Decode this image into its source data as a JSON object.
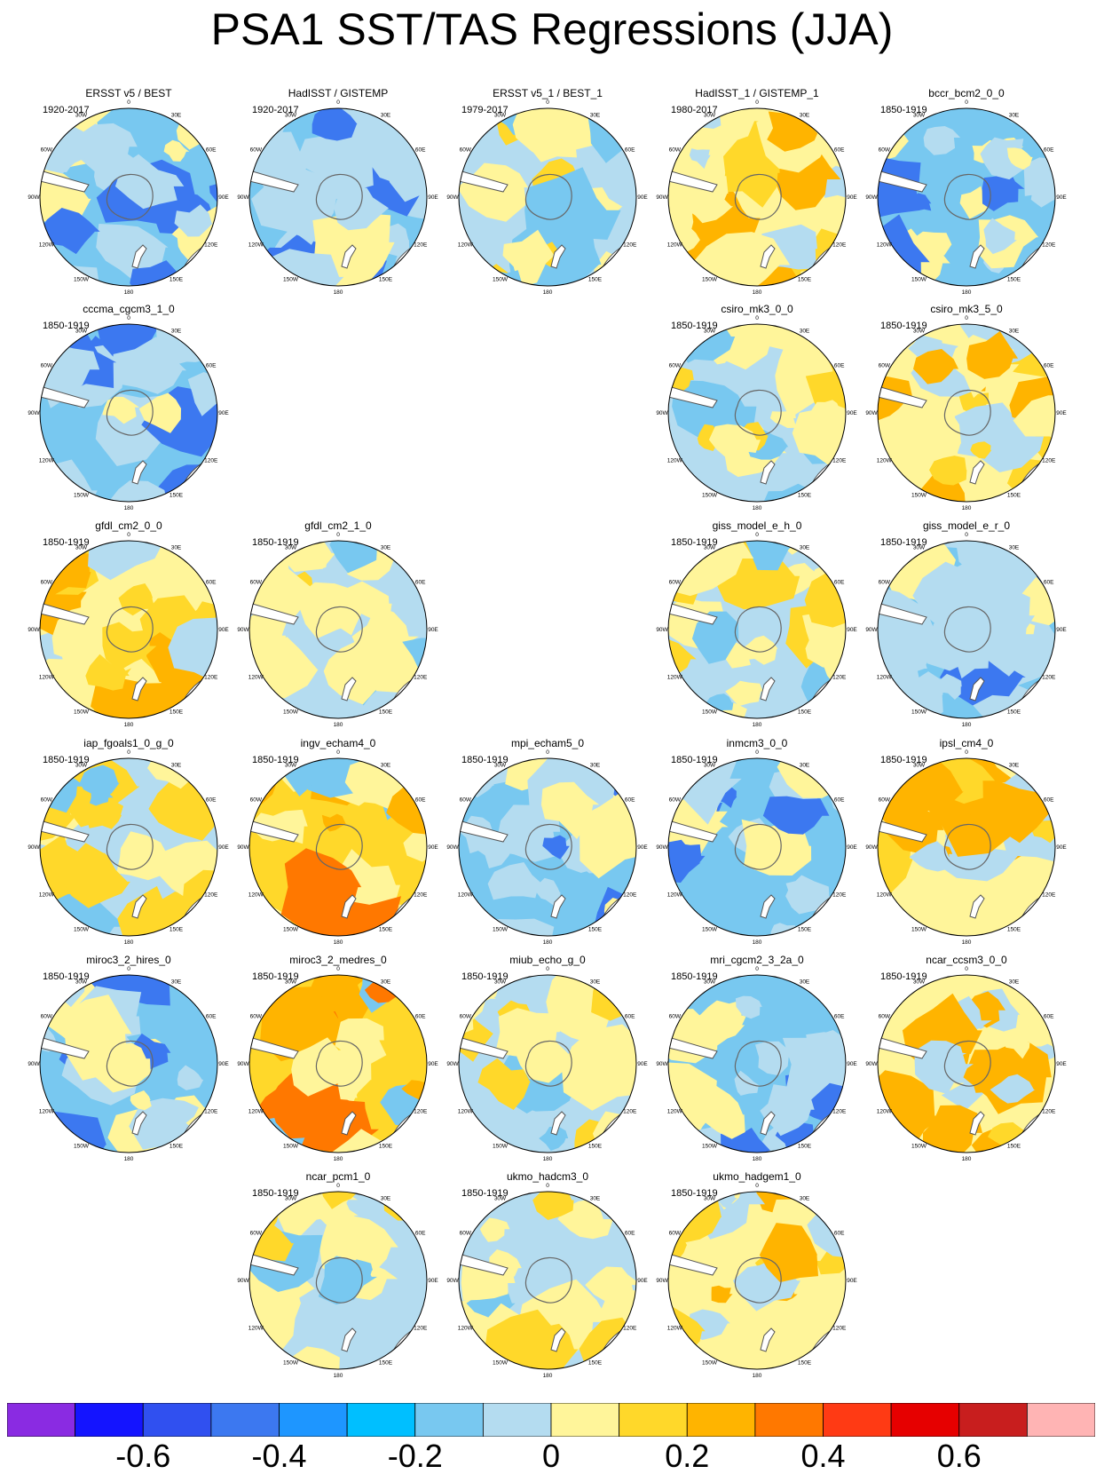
{
  "title": "PSA1 SST/TAS Regressions (JJA)",
  "longitude_labels": [
    "0",
    "30E",
    "60E",
    "90E",
    "120E",
    "150E",
    "180",
    "150W",
    "120W",
    "90W",
    "60W",
    "30W"
  ],
  "panels": [
    {
      "name": "ERSST v5 / BEST",
      "period": "1920-2017",
      "row": 0,
      "col": 0,
      "tone": "cool"
    },
    {
      "name": "HadISST / GISTEMP",
      "period": "1920-2017",
      "row": 0,
      "col": 1,
      "tone": "cool"
    },
    {
      "name": "ERSST v5_1 / BEST_1",
      "period": "1979-2017",
      "row": 0,
      "col": 2,
      "tone": "mixed"
    },
    {
      "name": "HadISST_1 / GISTEMP_1",
      "period": "1980-2017",
      "row": 0,
      "col": 3,
      "tone": "warm"
    },
    {
      "name": "bccr_bcm2_0_0",
      "period": "1850-1919",
      "row": 0,
      "col": 4,
      "tone": "cool"
    },
    {
      "name": "cccma_cgcm3_1_0",
      "period": "1850-1919",
      "row": 1,
      "col": 0,
      "tone": "cool"
    },
    {
      "name": "csiro_mk3_0_0",
      "period": "1850-1919",
      "row": 1,
      "col": 3,
      "tone": "mixed"
    },
    {
      "name": "csiro_mk3_5_0",
      "period": "1850-1919",
      "row": 1,
      "col": 4,
      "tone": "warm"
    },
    {
      "name": "gfdl_cm2_0_0",
      "period": "1850-1919",
      "row": 2,
      "col": 0,
      "tone": "warm"
    },
    {
      "name": "gfdl_cm2_1_0",
      "period": "1850-1919",
      "row": 2,
      "col": 1,
      "tone": "mixed"
    },
    {
      "name": "giss_model_e_h_0",
      "period": "1850-1919",
      "row": 2,
      "col": 3,
      "tone": "mixed"
    },
    {
      "name": "giss_model_e_r_0",
      "period": "1850-1919",
      "row": 2,
      "col": 4,
      "tone": "cool"
    },
    {
      "name": "iap_fgoals1_0_g_0",
      "period": "1850-1919",
      "row": 3,
      "col": 0,
      "tone": "mixed"
    },
    {
      "name": "ingv_echam4_0",
      "period": "1850-1919",
      "row": 3,
      "col": 1,
      "tone": "hot"
    },
    {
      "name": "mpi_echam5_0",
      "period": "1850-1919",
      "row": 3,
      "col": 2,
      "tone": "cool"
    },
    {
      "name": "inmcm3_0_0",
      "period": "1850-1919",
      "row": 3,
      "col": 3,
      "tone": "cool"
    },
    {
      "name": "ipsl_cm4_0",
      "period": "1850-1919",
      "row": 3,
      "col": 4,
      "tone": "warm"
    },
    {
      "name": "miroc3_2_hires_0",
      "period": "1850-1919",
      "row": 4,
      "col": 0,
      "tone": "cool"
    },
    {
      "name": "miroc3_2_medres_0",
      "period": "1850-1919",
      "row": 4,
      "col": 1,
      "tone": "hot"
    },
    {
      "name": "miub_echo_g_0",
      "period": "1850-1919",
      "row": 4,
      "col": 2,
      "tone": "mixed"
    },
    {
      "name": "mri_cgcm2_3_2a_0",
      "period": "1850-1919",
      "row": 4,
      "col": 3,
      "tone": "cool"
    },
    {
      "name": "ncar_ccsm3_0_0",
      "period": "1850-1919",
      "row": 4,
      "col": 4,
      "tone": "warm"
    },
    {
      "name": "ncar_pcm1_0",
      "period": "1850-1919",
      "row": 5,
      "col": 1,
      "tone": "mixed"
    },
    {
      "name": "ukmo_hadcm3_0",
      "period": "1850-1919",
      "row": 5,
      "col": 2,
      "tone": "mixed"
    },
    {
      "name": "ukmo_hadgem1_0",
      "period": "1850-1919",
      "row": 5,
      "col": 3,
      "tone": "warm"
    }
  ],
  "colorbar": {
    "colors": [
      "#8a2be2",
      "#1414ff",
      "#3050f0",
      "#3c78f0",
      "#1e96ff",
      "#00bfff",
      "#78c8f0",
      "#b4dcf0",
      "#fff59a",
      "#ffd82a",
      "#ffb400",
      "#ff7800",
      "#ff3a14",
      "#e60000",
      "#c81e1e",
      "#ffb4b4"
    ],
    "tick_labels": [
      "-0.6",
      "-0.4",
      "-0.2",
      "0",
      "0.2",
      "0.4",
      "0.6"
    ]
  }
}
